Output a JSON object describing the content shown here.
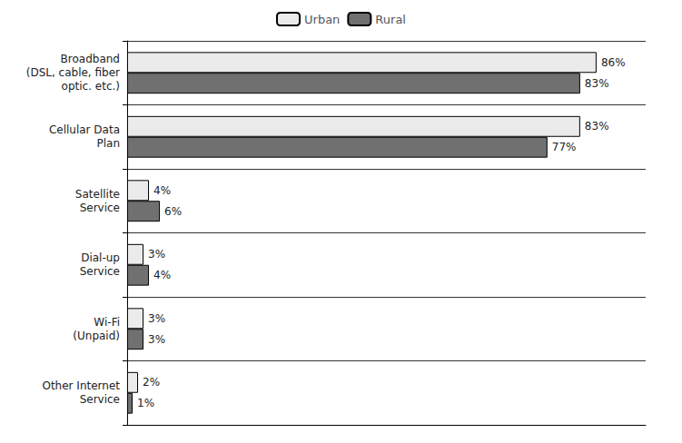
{
  "chart_data": {
    "type": "bar",
    "orientation": "horizontal",
    "categories": [
      "Broadband\n(DSL, cable, fiber\noptic. etc.)",
      "Cellular Data\nPlan",
      "Satellite\nService",
      "Dial-up\nService",
      "Wi-Fi\n(Unpaid)",
      "Other Internet\nService"
    ],
    "series": [
      {
        "name": "Urban",
        "color": "#ebebeb",
        "values": [
          86,
          83,
          4,
          3,
          3,
          2
        ],
        "value_labels": [
          "86%",
          "83%",
          "4%",
          "3%",
          "3%",
          "2%"
        ]
      },
      {
        "name": "Rural",
        "color": "#707070",
        "values": [
          83,
          77,
          6,
          4,
          3,
          1
        ],
        "value_labels": [
          "83%",
          "77%",
          "6%",
          "4%",
          "3%",
          "1%"
        ]
      }
    ],
    "xlim": [
      0,
      95
    ],
    "data_labels": true,
    "tick_labels": "y",
    "grid": true,
    "legend": "top"
  }
}
